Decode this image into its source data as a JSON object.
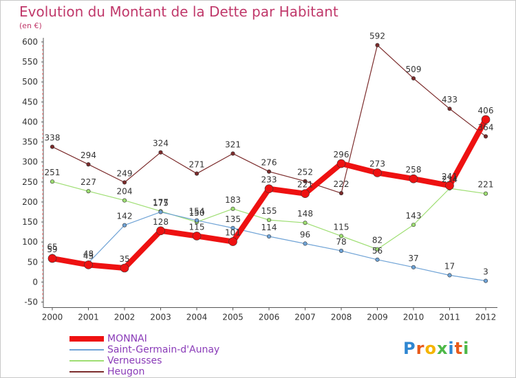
{
  "title": "Evolution du Montant de la Dette par Habitant",
  "subtitle": "(en €)",
  "logo_text": "Proxiti",
  "chart_data": {
    "type": "line",
    "x": [
      "2000",
      "2001",
      "2002",
      "2003",
      "2004",
      "2005",
      "2006",
      "2007",
      "2008",
      "2009",
      "2010",
      "2011",
      "2012"
    ],
    "ylim": [
      -50,
      600
    ],
    "yticks": [
      -50,
      0,
      50,
      100,
      150,
      200,
      250,
      300,
      350,
      400,
      450,
      500,
      550,
      600
    ],
    "grid": false,
    "legend_position": "bottom-left",
    "series": [
      {
        "name": "Heugon",
        "color": "#7b2b2b",
        "width": 1.2,
        "marker": 5.5,
        "values": [
          338,
          294,
          249,
          324,
          271,
          321,
          276,
          252,
          222,
          592,
          509,
          433,
          364
        ]
      },
      {
        "name": "Verneusses",
        "color": "#9ede72",
        "width": 1.2,
        "marker": 5.5,
        "values": [
          251,
          227,
          204,
          177,
          150,
          183,
          155,
          148,
          115,
          82,
          143,
          234,
          221
        ]
      },
      {
        "name": "Saint-Germain-d'Aunay",
        "color": "#6fa3d6",
        "width": 1.2,
        "marker": 5.5,
        "values": [
          65,
          48,
          142,
          175,
          154,
          135,
          114,
          96,
          78,
          56,
          37,
          17,
          3
        ]
      },
      {
        "name": "MONNAI",
        "color": "#ee1111",
        "width": 8,
        "marker": 12,
        "values": [
          59,
          43,
          35,
          128,
          115,
          101,
          233,
          221,
          296,
          273,
          258,
          241,
          406
        ]
      }
    ]
  }
}
